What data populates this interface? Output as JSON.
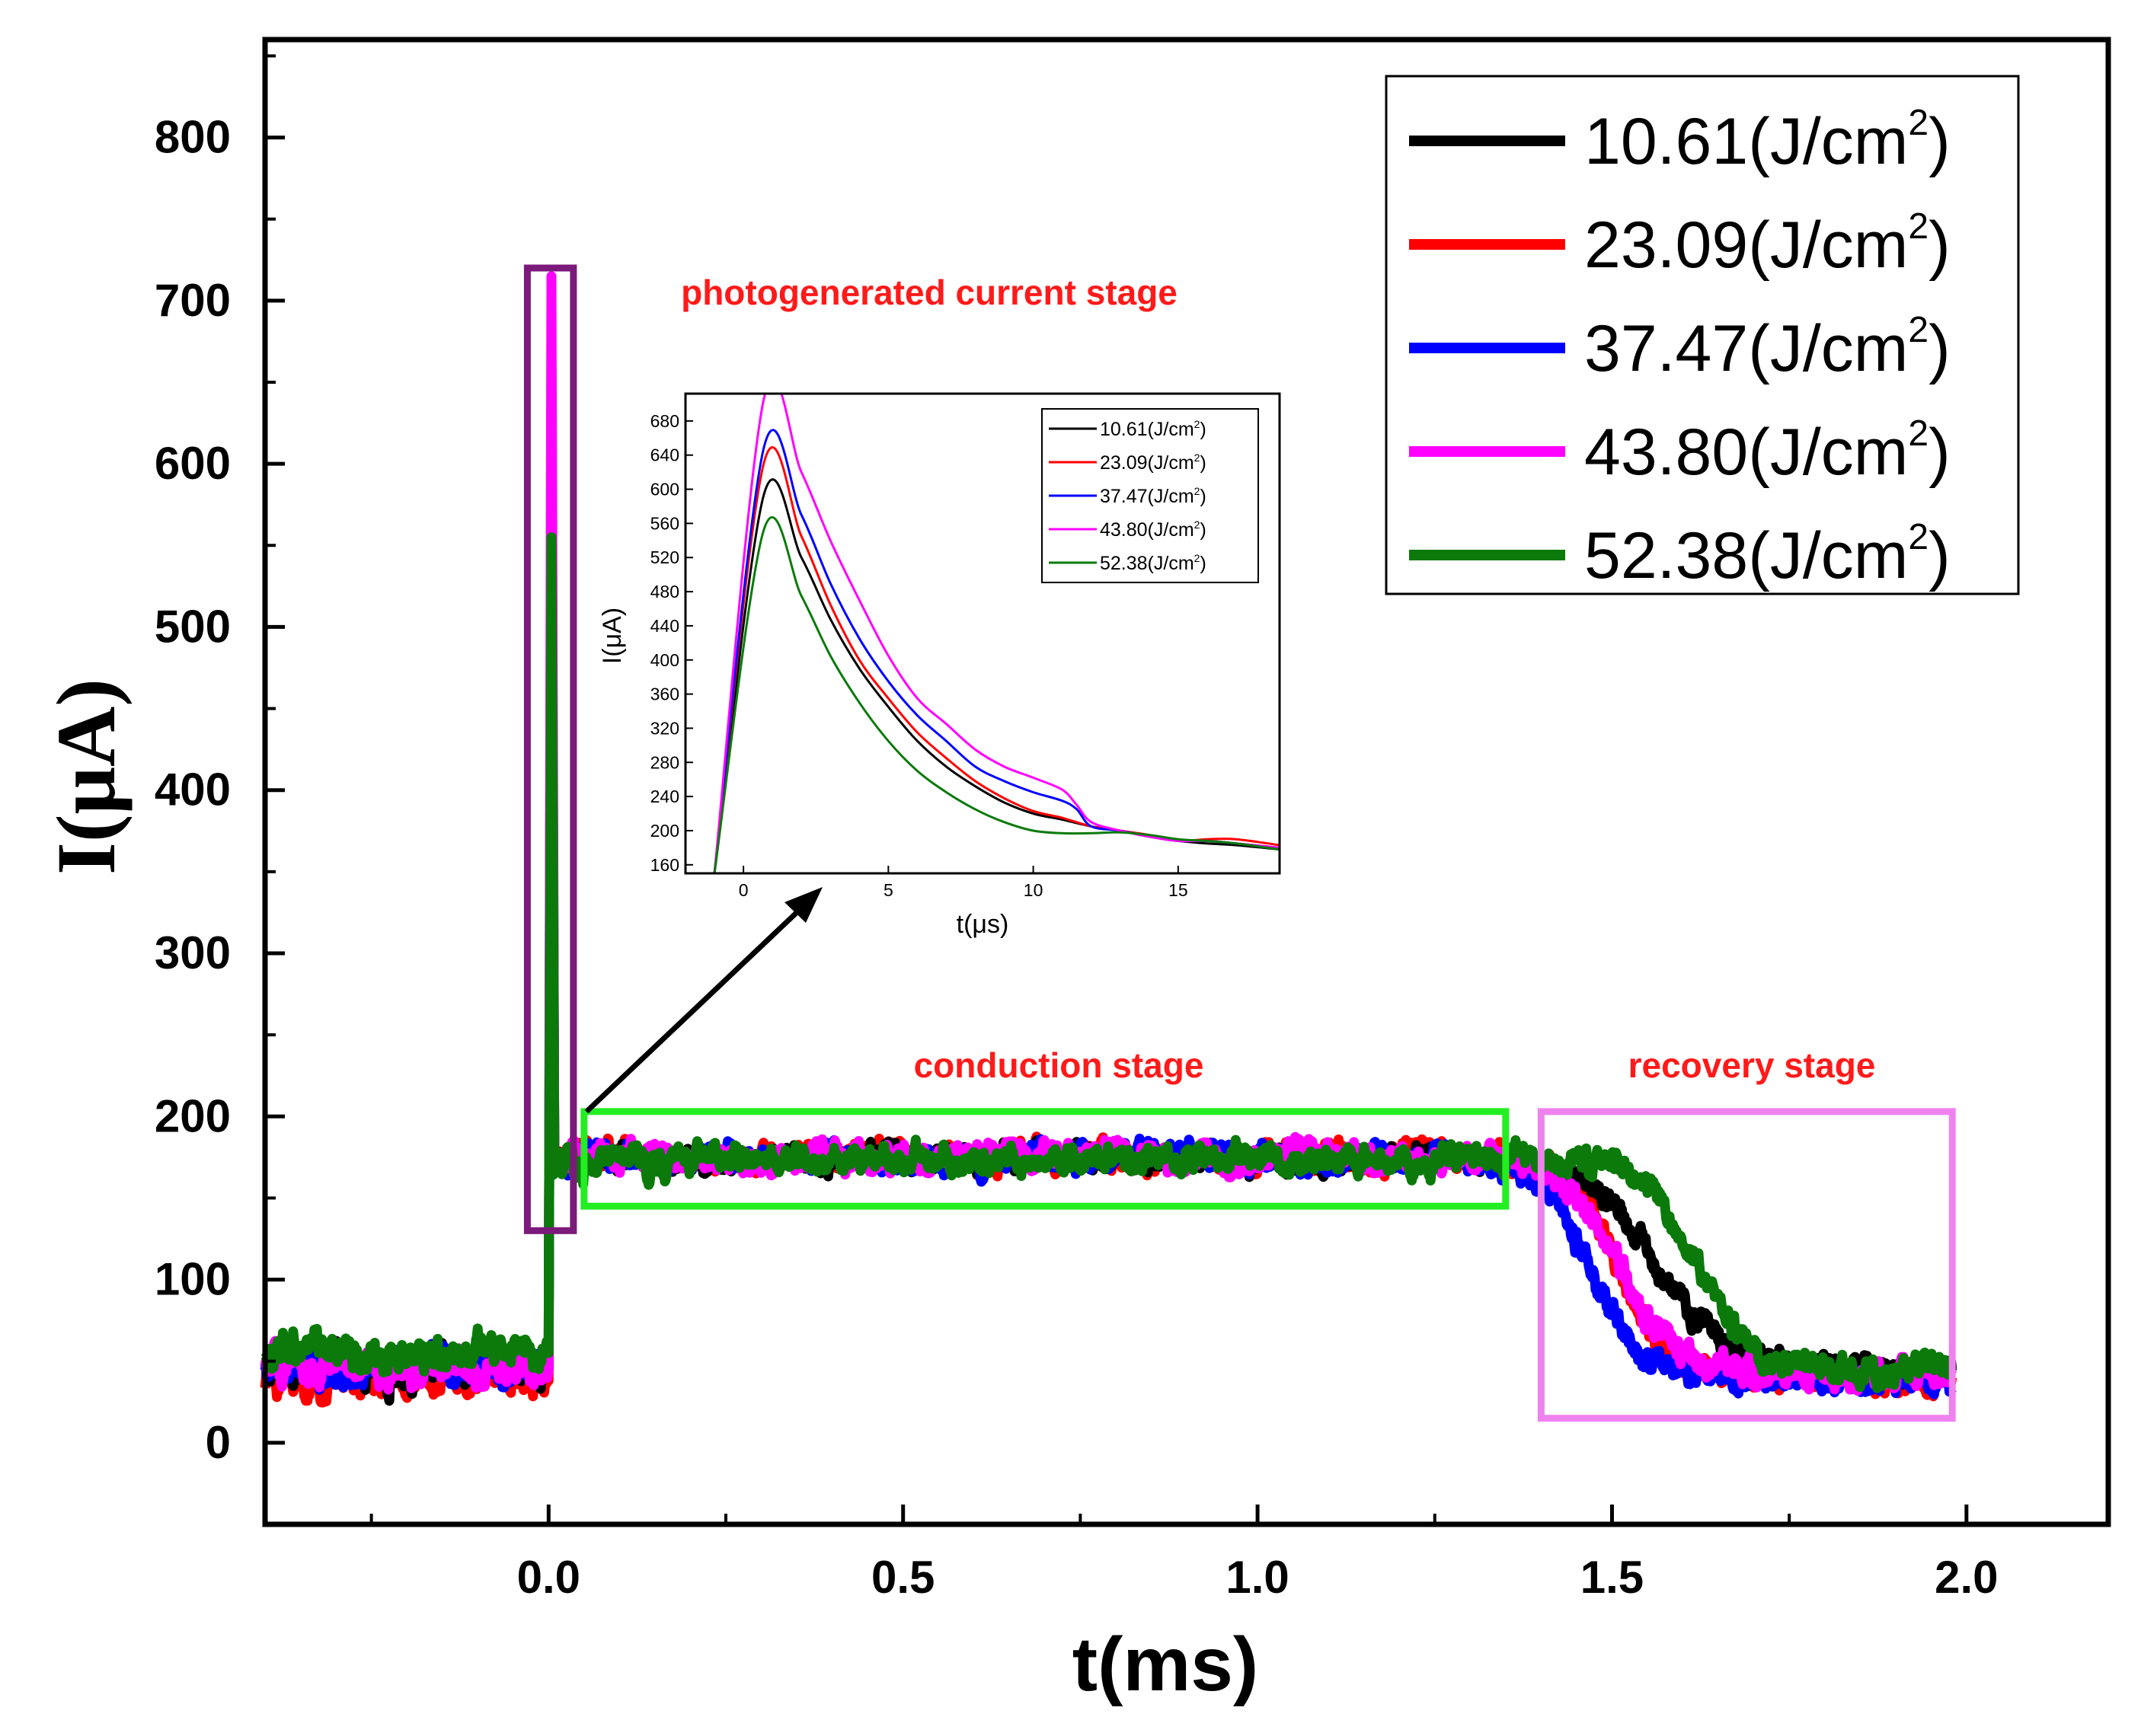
{
  "chart_data": [
    {
      "id": "main",
      "type": "line",
      "title": "",
      "xlabel": "t(ms)",
      "ylabel": "I(μA)",
      "xlim": [
        -0.4,
        2.2
      ],
      "ylim": [
        -50,
        860
      ],
      "xticks": [
        0.0,
        0.5,
        1.0,
        1.5,
        2.0
      ],
      "xtick_labels": [
        "0.0",
        "0.5",
        "1.0",
        "1.5",
        "2.0"
      ],
      "yticks": [
        0,
        100,
        200,
        300,
        400,
        500,
        600,
        700,
        800
      ],
      "ytick_labels": [
        "0",
        "100",
        "200",
        "300",
        "400",
        "500",
        "600",
        "700",
        "800"
      ],
      "legend": {
        "placement": "top-right",
        "unit_prefix": "(J/cm",
        "unit_exponent": "2",
        "unit_suffix": ")"
      },
      "series": [
        {
          "name": "10.61",
          "color": "#000000",
          "baseline": 45,
          "spike_peak": 590,
          "plateau": 175,
          "drop_center": 1.56,
          "drop_width": 0.05,
          "final": 45
        },
        {
          "name": "23.09",
          "color": "#ff0000",
          "baseline": 38,
          "spike_peak": 630,
          "plateau": 175,
          "drop_center": 1.51,
          "drop_width": 0.035,
          "final": 40
        },
        {
          "name": "37.47",
          "color": "#0000ff",
          "baseline": 45,
          "spike_peak": 650,
          "plateau": 175,
          "drop_center": 1.47,
          "drop_width": 0.035,
          "final": 38
        },
        {
          "name": "43.80",
          "color": "#ff00ff",
          "baseline": 45,
          "spike_peak": 715,
          "plateau": 175,
          "drop_center": 1.51,
          "drop_width": 0.04,
          "final": 42
        },
        {
          "name": "52.38",
          "color": "#0b7a0b",
          "baseline": 55,
          "spike_peak": 555,
          "plateau": 173,
          "drop_center": 1.62,
          "drop_width": 0.035,
          "final": 45
        }
      ],
      "annotations": [
        {
          "text": "photogenerated current stage",
          "color": "#ff1a1a"
        },
        {
          "text": "conduction stage",
          "color": "#ff1a1a"
        },
        {
          "text": "recovery stage",
          "color": "#ff1a1a"
        }
      ],
      "regions": [
        {
          "name": "photogenerated",
          "x": [
            -0.03,
            0.035
          ],
          "y": [
            130,
            720
          ],
          "color": "#7b1a7b"
        },
        {
          "name": "conduction",
          "x": [
            0.05,
            1.35
          ],
          "y": [
            145,
            203
          ],
          "color": "#22ee22"
        },
        {
          "name": "recovery",
          "x": [
            1.4,
            1.98
          ],
          "y": [
            15,
            203
          ],
          "color": "#ee82ee"
        }
      ]
    },
    {
      "id": "inset",
      "type": "line",
      "title": "",
      "xlabel": "t(μs)",
      "ylabel": "I(μA)",
      "xlim": [
        -2,
        18.5
      ],
      "ylim": [
        150,
        712
      ],
      "xticks": [
        0,
        5,
        10,
        15
      ],
      "xtick_labels": [
        "0",
        "5",
        "10",
        "15"
      ],
      "yticks": [
        160,
        200,
        240,
        280,
        320,
        360,
        400,
        440,
        480,
        520,
        560,
        600,
        640,
        680
      ],
      "ytick_labels": [
        "160",
        "200",
        "240",
        "280",
        "320",
        "360",
        "400",
        "440",
        "480",
        "520",
        "560",
        "600",
        "640",
        "680"
      ],
      "legend": {
        "placement": "top-right",
        "unit_prefix": "(J/cm",
        "unit_exponent": "2",
        "unit_suffix": ")"
      },
      "series": [
        {
          "name": "10.61",
          "color": "#000000",
          "x": [
            -1,
            0.7,
            2,
            3,
            4,
            5,
            6,
            7,
            8,
            9,
            10,
            11,
            12,
            13,
            14,
            15,
            16,
            17,
            18.5
          ],
          "y": [
            150,
            593,
            520,
            448,
            390,
            345,
            305,
            275,
            252,
            233,
            220,
            213,
            205,
            200,
            193,
            188,
            185,
            183,
            178
          ]
        },
        {
          "name": "23.09",
          "color": "#ff0000",
          "x": [
            -1,
            0.7,
            2,
            3,
            4,
            5,
            6,
            7,
            8,
            9,
            10,
            11,
            12,
            13,
            14,
            15,
            16,
            17,
            18.5
          ],
          "y": [
            150,
            630,
            545,
            465,
            400,
            355,
            315,
            285,
            258,
            238,
            223,
            215,
            205,
            200,
            195,
            188,
            190,
            190,
            183
          ]
        },
        {
          "name": "37.47",
          "color": "#0000ff",
          "x": [
            -1,
            0.7,
            2,
            3,
            4,
            5,
            6,
            7,
            8,
            9,
            10,
            11,
            11.5,
            12,
            13,
            14,
            15,
            16,
            17,
            18.5
          ],
          "y": [
            150,
            648,
            570,
            490,
            425,
            375,
            335,
            305,
            275,
            258,
            245,
            235,
            225,
            205,
            200,
            193,
            188,
            188,
            185,
            180
          ]
        },
        {
          "name": "43.80",
          "color": "#ff00ff",
          "x": [
            -1,
            0.7,
            2,
            3,
            4,
            5,
            6,
            7,
            8,
            9,
            10,
            11,
            11.5,
            12,
            13,
            14,
            15,
            16,
            17,
            18.5
          ],
          "y": [
            150,
            705,
            620,
            540,
            470,
            405,
            355,
            325,
            295,
            275,
            262,
            248,
            230,
            210,
            200,
            193,
            188,
            188,
            185,
            180
          ]
        },
        {
          "name": "52.38",
          "color": "#0b7a0b",
          "x": [
            -1,
            0.7,
            2,
            3,
            4,
            5,
            6,
            7,
            8,
            9,
            10,
            11,
            12,
            13,
            14,
            15,
            16,
            17,
            18.5
          ],
          "y": [
            150,
            552,
            475,
            405,
            350,
            305,
            270,
            245,
            225,
            210,
            200,
            197,
            197,
            198,
            195,
            190,
            188,
            185,
            178
          ]
        }
      ]
    }
  ]
}
